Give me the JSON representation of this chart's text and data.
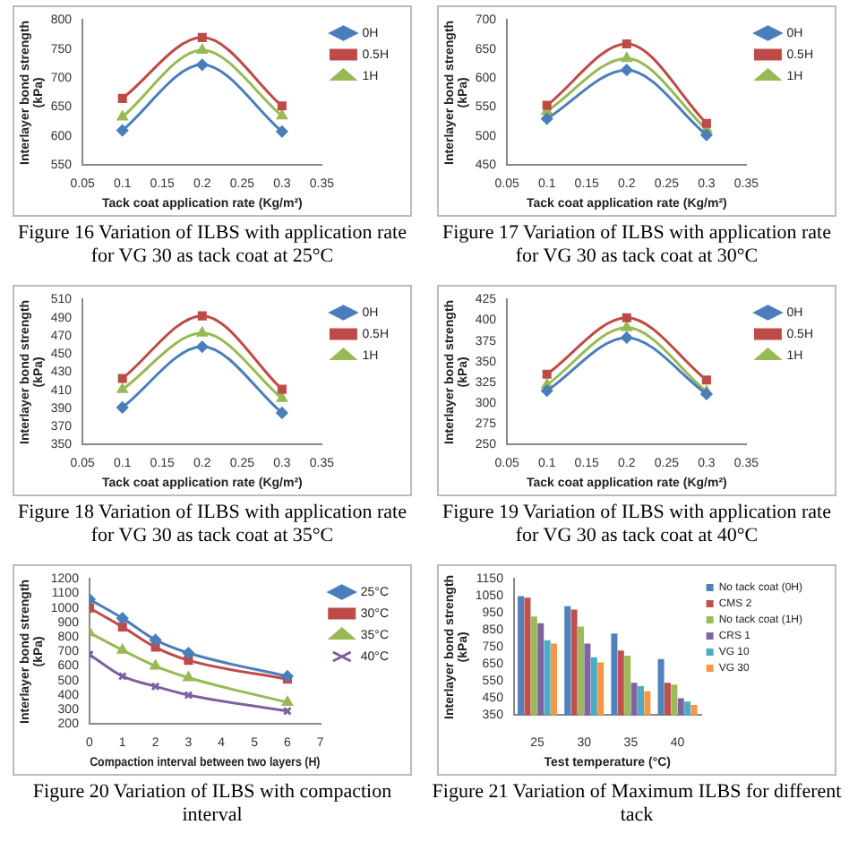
{
  "chart_data": [
    {
      "type": "line",
      "title": "Figure 16 Variation of ILBS with application rate for VG 30 as tack coat at 25°C",
      "xlabel": "Tack coat application rate (Kg/m²)",
      "ylabel": "Interlayer bond strength (kPa)",
      "x": [
        0.1,
        0.2,
        0.3
      ],
      "xlim": [
        0.05,
        0.35
      ],
      "xticks": [
        0.05,
        0.1,
        0.15,
        0.2,
        0.25,
        0.3,
        0.35
      ],
      "ylim": [
        550,
        800
      ],
      "yticks": [
        550,
        600,
        650,
        700,
        750,
        800
      ],
      "grid": false,
      "legend": "right",
      "series": [
        {
          "name": "0H",
          "color": "#4a7ebb",
          "marker": "diamond",
          "values": [
            610,
            723,
            608
          ]
        },
        {
          "name": "0.5H",
          "color": "#be4b48",
          "marker": "square",
          "values": [
            665,
            770,
            652
          ]
        },
        {
          "name": "1H",
          "color": "#98b954",
          "marker": "triangle",
          "values": [
            633,
            748,
            635
          ]
        }
      ]
    },
    {
      "type": "line",
      "title": "Figure 17 Variation of ILBS with application rate for VG 30 as tack coat at 30°C",
      "xlabel": "Tack coat application rate (Kg/m²)",
      "ylabel": "Interlayer bond strength (kPa)",
      "x": [
        0.1,
        0.2,
        0.3
      ],
      "xlim": [
        0.05,
        0.35
      ],
      "xticks": [
        0.05,
        0.1,
        0.15,
        0.2,
        0.25,
        0.3,
        0.35
      ],
      "ylim": [
        450,
        700
      ],
      "yticks": [
        450,
        500,
        550,
        600,
        650,
        700
      ],
      "grid": false,
      "legend": "right",
      "series": [
        {
          "name": "0H",
          "color": "#4a7ebb",
          "marker": "diamond",
          "values": [
            530,
            614,
            502
          ]
        },
        {
          "name": "0.5H",
          "color": "#be4b48",
          "marker": "square",
          "values": [
            553,
            659,
            522
          ]
        },
        {
          "name": "1H",
          "color": "#98b954",
          "marker": "triangle",
          "values": [
            543,
            634,
            512
          ]
        }
      ]
    },
    {
      "type": "line",
      "title": "Figure 18 Variation of ILBS with application rate for VG 30 as tack coat at 35°C",
      "xlabel": "Tack coat application rate (Kg/m²)",
      "ylabel": "Interlayer bond strength (kPa)",
      "x": [
        0.1,
        0.2,
        0.3
      ],
      "xlim": [
        0.05,
        0.35
      ],
      "xticks": [
        0.05,
        0.1,
        0.15,
        0.2,
        0.25,
        0.3,
        0.35
      ],
      "ylim": [
        350,
        510
      ],
      "yticks": [
        350,
        370,
        390,
        410,
        430,
        450,
        470,
        490,
        510
      ],
      "grid": false,
      "legend": "right",
      "series": [
        {
          "name": "0H",
          "color": "#4a7ebb",
          "marker": "diamond",
          "values": [
            391,
            458,
            385
          ]
        },
        {
          "name": "0.5H",
          "color": "#be4b48",
          "marker": "square",
          "values": [
            423,
            492,
            411
          ]
        },
        {
          "name": "1H",
          "color": "#98b954",
          "marker": "triangle",
          "values": [
            411,
            473,
            401
          ]
        }
      ]
    },
    {
      "type": "line",
      "title": "Figure 19 Variation of ILBS with application rate for VG 30 as tack coat at 40°C",
      "xlabel": "Tack coat application rate (Kg/m²)",
      "ylabel": "Interlayer bond strength (kPa)",
      "x": [
        0.1,
        0.2,
        0.3
      ],
      "xlim": [
        0.05,
        0.35
      ],
      "xticks": [
        0.05,
        0.1,
        0.15,
        0.2,
        0.25,
        0.3,
        0.35
      ],
      "ylim": [
        250,
        425
      ],
      "yticks": [
        250,
        275,
        300,
        325,
        350,
        375,
        400,
        425
      ],
      "grid": false,
      "legend": "right",
      "series": [
        {
          "name": "0H",
          "color": "#4a7ebb",
          "marker": "diamond",
          "values": [
            315,
            379,
            311
          ]
        },
        {
          "name": "0.5H",
          "color": "#be4b48",
          "marker": "square",
          "values": [
            335,
            403,
            328
          ]
        },
        {
          "name": "1H",
          "color": "#98b954",
          "marker": "triangle",
          "values": [
            322,
            391,
            314
          ]
        }
      ]
    },
    {
      "type": "line",
      "title": "Figure 20 Variation of ILBS with compaction interval",
      "xlabel": "Compaction interval between two layers (H)",
      "ylabel": "Interlayer bond strength (kPa)",
      "x": [
        0,
        1,
        2,
        3,
        6
      ],
      "xlim": [
        0,
        7
      ],
      "xticks": [
        0,
        1,
        2,
        3,
        4,
        5,
        6,
        7
      ],
      "ylim": [
        200,
        1200
      ],
      "yticks": [
        200,
        300,
        400,
        500,
        600,
        700,
        800,
        900,
        1000,
        1100,
        1200
      ],
      "grid": false,
      "legend": "right",
      "series": [
        {
          "name": "25°C",
          "color": "#4a7ebb",
          "marker": "diamond",
          "values": [
            1060,
            930,
            780,
            690,
            530
          ]
        },
        {
          "name": "30°C",
          "color": "#be4b48",
          "marker": "square",
          "values": [
            1000,
            870,
            730,
            640,
            510
          ]
        },
        {
          "name": "35°C",
          "color": "#98b954",
          "marker": "triangle",
          "values": [
            830,
            710,
            600,
            520,
            350
          ]
        },
        {
          "name": "40°C",
          "color": "#7d60a0",
          "marker": "cross",
          "values": [
            680,
            530,
            460,
            400,
            290
          ]
        }
      ]
    },
    {
      "type": "bar",
      "title": "Figure 21 Variation of Maximum ILBS for different tack",
      "xlabel": "Test temperature (°C)",
      "ylabel": "Interlayer bond strength (kPa)",
      "categories": [
        "25",
        "30",
        "35",
        "40"
      ],
      "ylim": [
        350,
        1150
      ],
      "yticks": [
        350,
        450,
        550,
        650,
        750,
        850,
        950,
        1050,
        1150
      ],
      "grid": false,
      "legend": "right",
      "series": [
        {
          "name": "No tack coat (0H)",
          "color": "#4f81bd",
          "values": [
            1050,
            990,
            830,
            680
          ]
        },
        {
          "name": "CMS 2",
          "color": "#c0504d",
          "values": [
            1040,
            970,
            730,
            540
          ]
        },
        {
          "name": "No tack coat (1H)",
          "color": "#9bbb59",
          "values": [
            930,
            870,
            700,
            530
          ]
        },
        {
          "name": "CRS 1",
          "color": "#8064a2",
          "values": [
            890,
            770,
            540,
            450
          ]
        },
        {
          "name": "VG 10",
          "color": "#4bacc6",
          "values": [
            790,
            690,
            520,
            430
          ]
        },
        {
          "name": "VG 30",
          "color": "#f79646",
          "values": [
            770,
            660,
            490,
            410
          ]
        }
      ]
    }
  ]
}
